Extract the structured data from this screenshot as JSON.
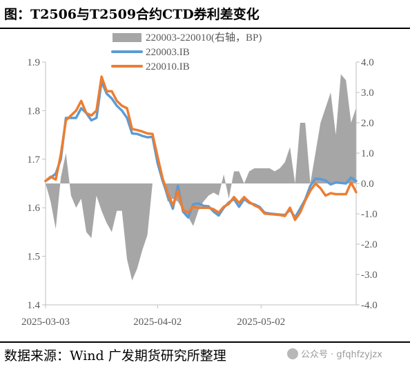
{
  "header": {
    "title": "图：T2506与T2509合约CTD券利差变化"
  },
  "footer": {
    "source": "数据来源：Wind  广发期货研究所整理",
    "watermark": "公众号 · gfqhfzyjzx"
  },
  "chart_data": {
    "type": "line",
    "x_tick_labels": [
      "2025-03-03",
      "2025-04-02",
      "2025-05-02"
    ],
    "x_dates": [
      "2025-03-03",
      "2025-03-04",
      "2025-03-05",
      "2025-03-06",
      "2025-03-07",
      "2025-03-10",
      "2025-03-11",
      "2025-03-12",
      "2025-03-13",
      "2025-03-14",
      "2025-03-17",
      "2025-03-18",
      "2025-03-19",
      "2025-03-20",
      "2025-03-21",
      "2025-03-24",
      "2025-03-25",
      "2025-03-26",
      "2025-03-27",
      "2025-03-28",
      "2025-03-31",
      "2025-04-01",
      "2025-04-02",
      "2025-04-03",
      "2025-04-07",
      "2025-04-08",
      "2025-04-09",
      "2025-04-10",
      "2025-04-11",
      "2025-04-14",
      "2025-04-15",
      "2025-04-16",
      "2025-04-17",
      "2025-04-18",
      "2025-04-21",
      "2025-04-22",
      "2025-04-23",
      "2025-04-24",
      "2025-04-25",
      "2025-04-27",
      "2025-04-28",
      "2025-04-29",
      "2025-04-30",
      "2025-05-06",
      "2025-05-07",
      "2025-05-08",
      "2025-05-09",
      "2025-05-12",
      "2025-05-13",
      "2025-05-14",
      "2025-05-15",
      "2025-05-16",
      "2025-05-19",
      "2025-05-20",
      "2025-05-21",
      "2025-05-22",
      "2025-05-23",
      "2025-05-26",
      "2025-05-27",
      "2025-05-28",
      "2025-05-29",
      "2025-05-30"
    ],
    "y_left": {
      "min": 1.4,
      "max": 1.9,
      "ticks": [
        "1.4",
        "1.5",
        "1.6",
        "1.7",
        "1.8",
        "1.9"
      ]
    },
    "y_right": {
      "min": -4.0,
      "max": 4.0,
      "ticks": [
        "-4.0",
        "-3.0",
        "-2.0",
        "-1.0",
        "0.0",
        "1.0",
        "2.0",
        "3.0",
        "4.0"
      ]
    },
    "legend": {
      "position": "top-right"
    },
    "series": [
      {
        "name": "220003-220010(右轴，BP)",
        "type": "area",
        "axis": "right",
        "color": "#a6a6a6",
        "values": [
          0.0,
          -0.6,
          -1.5,
          0.2,
          1.0,
          -0.4,
          -0.8,
          -0.5,
          -1.6,
          -1.8,
          -0.4,
          -0.9,
          -1.3,
          -1.6,
          -0.9,
          -0.9,
          -2.5,
          -3.2,
          -2.8,
          -2.2,
          -1.7,
          0.0,
          0.0,
          0.0,
          -0.6,
          -0.5,
          -0.6,
          -0.9,
          -1.1,
          -1.4,
          -0.9,
          -0.6,
          -0.4,
          -0.3,
          -0.4,
          0.3,
          -0.5,
          0.4,
          0.4,
          0.0,
          0.4,
          0.5,
          0.5,
          0.5,
          0.5,
          0.4,
          0.5,
          0.7,
          1.2,
          0.0,
          2.0,
          2.0,
          0.0,
          1.0,
          2.0,
          2.5,
          3.0,
          1.6,
          3.6,
          3.4,
          2.0,
          2.5
        ],
        "axis_value_first": 0
      },
      {
        "name": "220003.IB",
        "type": "line",
        "axis": "left",
        "color": "#5b9bd5",
        "values": [
          1.655,
          1.662,
          1.67,
          1.7,
          1.785,
          1.785,
          1.785,
          1.805,
          1.795,
          1.78,
          1.785,
          1.86,
          1.835,
          1.825,
          1.81,
          1.8,
          1.785,
          1.753,
          1.752,
          1.748,
          1.745,
          1.746,
          1.692,
          1.655,
          1.625,
          1.598,
          1.645,
          1.592,
          1.58,
          1.607,
          1.609,
          1.604,
          1.603,
          1.592,
          1.584,
          1.6,
          1.611,
          1.618,
          1.602,
          1.618,
          1.61,
          1.607,
          1.602,
          1.59,
          1.588,
          1.587,
          1.586,
          1.585,
          1.596,
          1.58,
          1.598,
          1.617,
          1.645,
          1.66,
          1.659,
          1.656,
          1.648,
          1.652,
          1.651,
          1.65,
          1.662,
          1.655
        ]
      },
      {
        "name": "220010.IB",
        "type": "line",
        "axis": "left",
        "color": "#ed7d31",
        "values": [
          1.655,
          1.664,
          1.658,
          1.71,
          1.78,
          1.79,
          1.8,
          1.82,
          1.795,
          1.79,
          1.8,
          1.87,
          1.84,
          1.84,
          1.82,
          1.81,
          1.805,
          1.762,
          1.76,
          1.757,
          1.753,
          1.752,
          1.705,
          1.66,
          1.63,
          1.605,
          1.635,
          1.595,
          1.59,
          1.602,
          1.6,
          1.6,
          1.6,
          1.597,
          1.59,
          1.602,
          1.608,
          1.622,
          1.61,
          1.622,
          1.612,
          1.605,
          1.6,
          1.588,
          1.587,
          1.586,
          1.585,
          1.583,
          1.6,
          1.575,
          1.59,
          1.615,
          1.635,
          1.65,
          1.64,
          1.625,
          1.63,
          1.628,
          1.628,
          1.628,
          1.652,
          1.632
        ]
      }
    ]
  }
}
